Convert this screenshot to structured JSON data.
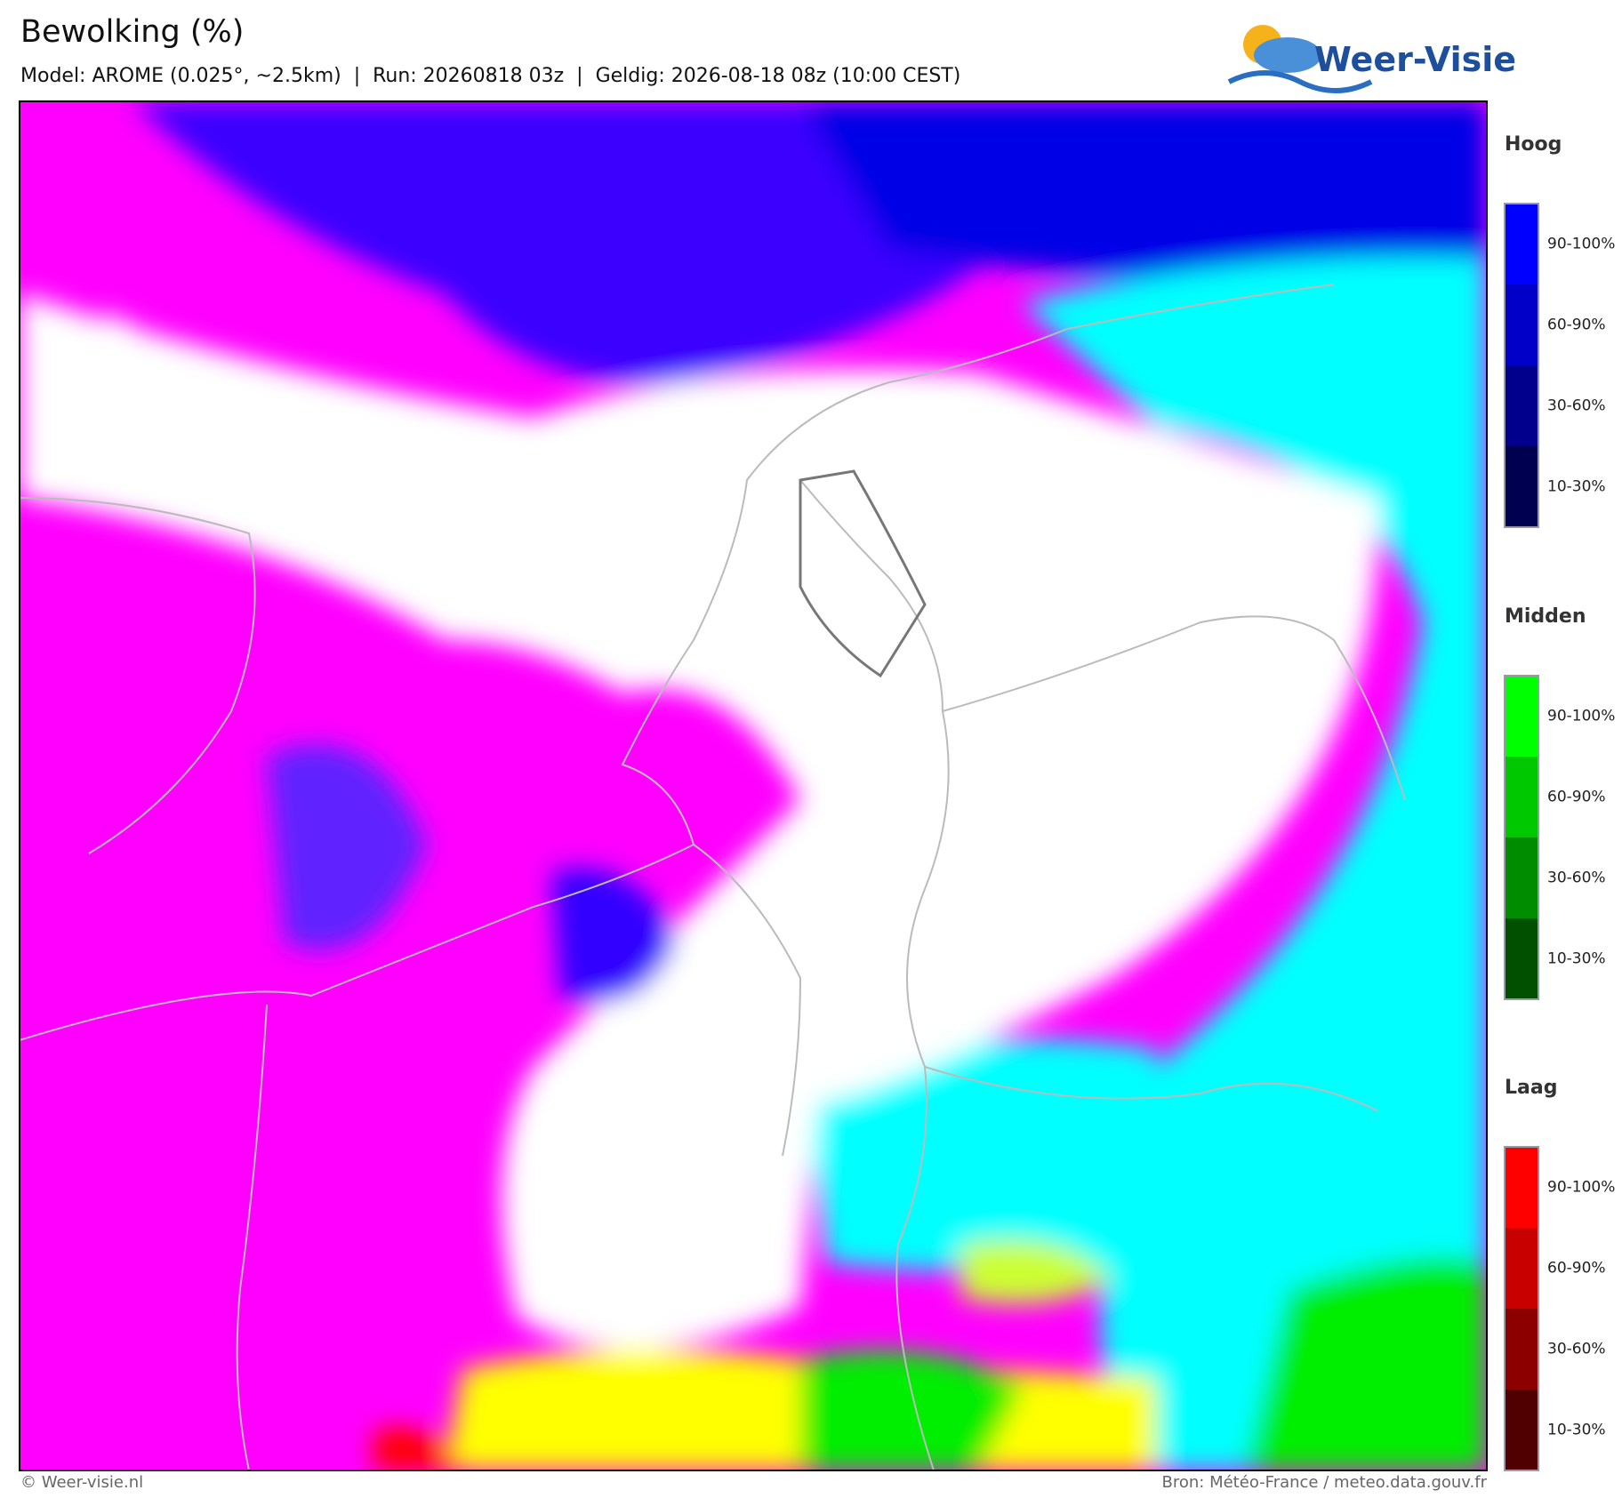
{
  "header": {
    "title": "Bewolking (%)",
    "subtitle": "Model: AROME (0.025°, ~2.5km)  |  Run: 20260818 03z  |  Geldig: 2026-08-18 08z (10:00 CEST)",
    "logo": "Weer-Visie"
  },
  "legend": [
    {
      "title": "Hoog",
      "items": [
        {
          "label": "90-100%",
          "color": "#0000ff"
        },
        {
          "label": "60-90%",
          "color": "#0000c8"
        },
        {
          "label": "30-60%",
          "color": "#00008c"
        },
        {
          "label": "10-30%",
          "color": "#000050"
        }
      ]
    },
    {
      "title": "Midden",
      "items": [
        {
          "label": "90-100%",
          "color": "#00ff00"
        },
        {
          "label": "60-90%",
          "color": "#00c800"
        },
        {
          "label": "30-60%",
          "color": "#008c00"
        },
        {
          "label": "10-30%",
          "color": "#005000"
        }
      ]
    },
    {
      "title": "Laag",
      "items": [
        {
          "label": "90-100%",
          "color": "#ff0000"
        },
        {
          "label": "60-90%",
          "color": "#c80000"
        },
        {
          "label": "30-60%",
          "color": "#8c0000"
        },
        {
          "label": "10-30%",
          "color": "#500000"
        }
      ]
    }
  ],
  "footer": {
    "left": "© Weer-visie.nl",
    "right": "Bron: Météo-France / meteo.data.gouv.fr"
  }
}
